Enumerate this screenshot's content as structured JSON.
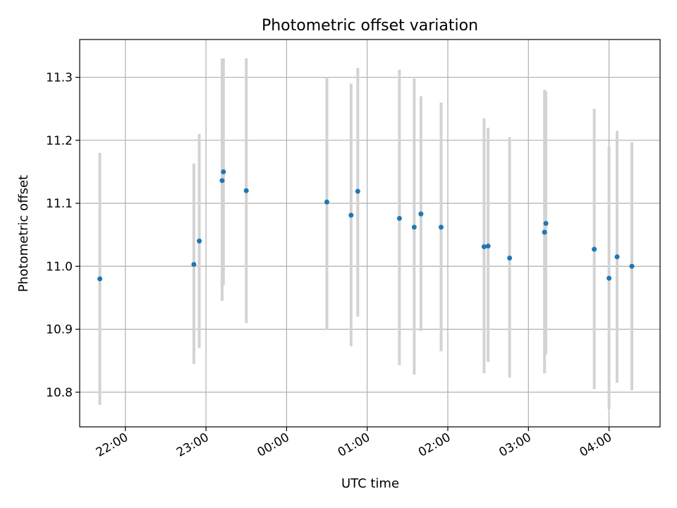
{
  "chart_data": {
    "type": "scatter",
    "title": "Photometric offset variation",
    "xlabel": "UTC time",
    "ylabel": "Photometric offset",
    "xlim": [
      "21:26",
      "04:38"
    ],
    "ylim": [
      10.745,
      11.36
    ],
    "x_ticks": [
      "22:00",
      "23:00",
      "00:00",
      "01:00",
      "02:00",
      "03:00",
      "04:00"
    ],
    "y_ticks": [
      "10.8",
      "10.9",
      "11.0",
      "11.1",
      "11.2",
      "11.3"
    ],
    "grid": true,
    "series": [
      {
        "color": "#1f77b4",
        "error_color": "#d3d3d3",
        "points": [
          {
            "x": "21:41",
            "y": 10.98,
            "yerr_low": 10.78,
            "yerr_high": 11.18
          },
          {
            "x": "22:51",
            "y": 11.003,
            "yerr_low": 10.845,
            "yerr_high": 11.163
          },
          {
            "x": "22:55",
            "y": 11.04,
            "yerr_low": 10.87,
            "yerr_high": 11.21
          },
          {
            "x": "23:12",
            "y": 11.136,
            "yerr_low": 10.945,
            "yerr_high": 11.33
          },
          {
            "x": "23:13",
            "y": 11.15,
            "yerr_low": 10.97,
            "yerr_high": 11.33
          },
          {
            "x": "23:30",
            "y": 11.12,
            "yerr_low": 10.91,
            "yerr_high": 11.33
          },
          {
            "x": "00:30",
            "y": 11.102,
            "yerr_low": 10.9,
            "yerr_high": 11.3
          },
          {
            "x": "00:48",
            "y": 11.081,
            "yerr_low": 10.873,
            "yerr_high": 11.29
          },
          {
            "x": "00:53",
            "y": 11.119,
            "yerr_low": 10.92,
            "yerr_high": 11.315
          },
          {
            "x": "01:24",
            "y": 11.076,
            "yerr_low": 10.843,
            "yerr_high": 11.312
          },
          {
            "x": "01:35",
            "y": 11.062,
            "yerr_low": 10.828,
            "yerr_high": 11.298
          },
          {
            "x": "01:40",
            "y": 11.083,
            "yerr_low": 10.897,
            "yerr_high": 11.27
          },
          {
            "x": "01:55",
            "y": 11.062,
            "yerr_low": 10.865,
            "yerr_high": 11.26
          },
          {
            "x": "02:27",
            "y": 11.031,
            "yerr_low": 10.83,
            "yerr_high": 11.235
          },
          {
            "x": "02:30",
            "y": 11.032,
            "yerr_low": 10.848,
            "yerr_high": 11.22
          },
          {
            "x": "02:46",
            "y": 11.013,
            "yerr_low": 10.823,
            "yerr_high": 11.205
          },
          {
            "x": "03:12",
            "y": 11.054,
            "yerr_low": 10.83,
            "yerr_high": 11.28
          },
          {
            "x": "03:13",
            "y": 11.068,
            "yerr_low": 10.86,
            "yerr_high": 11.278
          },
          {
            "x": "03:49",
            "y": 11.027,
            "yerr_low": 10.805,
            "yerr_high": 11.25
          },
          {
            "x": "04:00",
            "y": 10.981,
            "yerr_low": 10.773,
            "yerr_high": 11.19
          },
          {
            "x": "04:06",
            "y": 11.015,
            "yerr_low": 10.815,
            "yerr_high": 11.215
          },
          {
            "x": "04:17",
            "y": 11.0,
            "yerr_low": 10.803,
            "yerr_high": 11.197
          }
        ]
      }
    ]
  }
}
